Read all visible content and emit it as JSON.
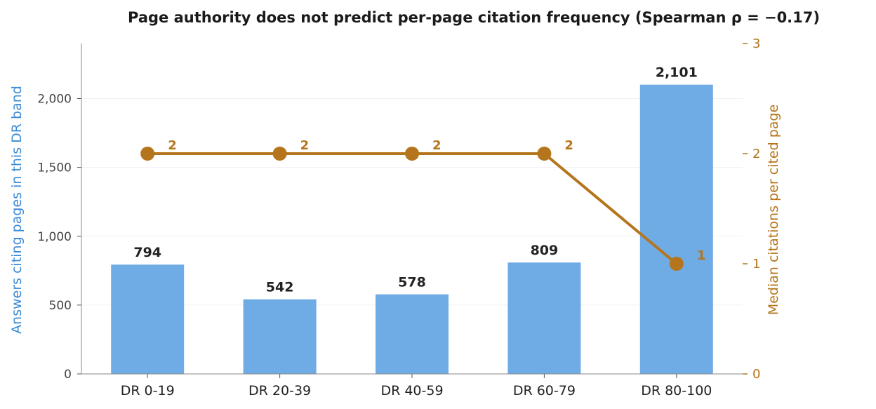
{
  "chart_data": {
    "type": "bar",
    "title": "Page authority does not predict per-page citation frequency (Spearman ρ = −0.17)",
    "categories": [
      "DR 0-19",
      "DR 20-39",
      "DR 40-59",
      "DR 60-79",
      "DR 80-100"
    ],
    "bar_series": {
      "values": [
        794,
        542,
        578,
        809,
        2101
      ],
      "value_labels": [
        "794",
        "542",
        "578",
        "809",
        "2,101"
      ],
      "color": "#6fabe4"
    },
    "line_series": {
      "type": "line",
      "values": [
        2,
        2,
        2,
        2,
        1
      ],
      "value_labels": [
        "2",
        "2",
        "2",
        "2",
        "1"
      ],
      "color": "#b5751c"
    },
    "ylabel": "Answers citing pages in this DR band",
    "ylabel_color": "#3a8bd6",
    "ylim": [
      0,
      2400
    ],
    "yticks": [
      0,
      500,
      1000,
      1500,
      2000
    ],
    "ytick_labels": [
      "0",
      "500",
      "1,000",
      "1,500",
      "2,000"
    ],
    "y2label": "Median citations per cited page",
    "y2label_color": "#b5751c",
    "y2lim": [
      0,
      3.0
    ],
    "y2ticks": [
      0,
      1,
      2,
      3
    ],
    "y2tick_labels": [
      "0",
      "1",
      "2",
      "3"
    ],
    "grid": true
  }
}
